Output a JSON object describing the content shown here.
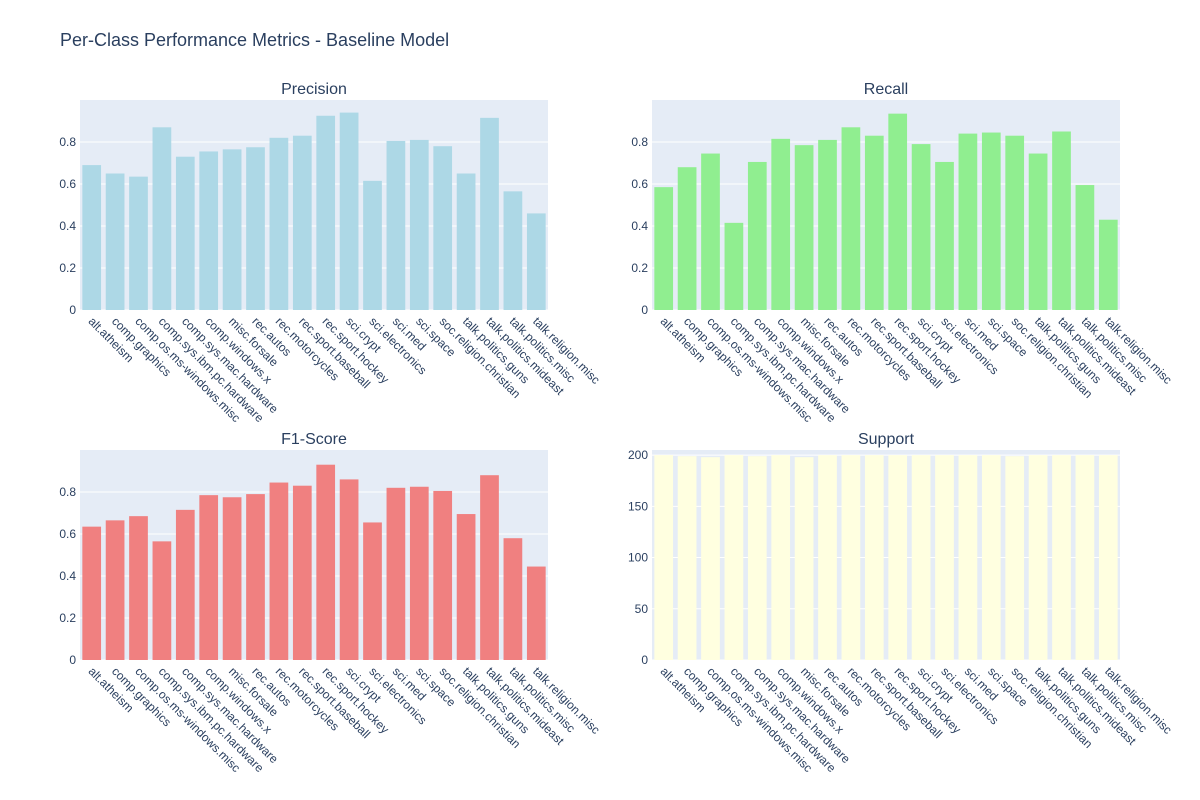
{
  "title": "Per-Class Performance Metrics - Baseline Model",
  "chart_data": [
    {
      "type": "bar",
      "title": "Precision",
      "color": "#add8e6",
      "categories": [
        "alt.atheism",
        "comp.graphics",
        "comp.os.ms-windows.misc",
        "comp.sys.ibm.pc.hardware",
        "comp.sys.mac.hardware",
        "comp.windows.x",
        "misc.forsale",
        "rec.autos",
        "rec.motorcycles",
        "rec.sport.baseball",
        "rec.sport.hockey",
        "sci.crypt",
        "sci.electronics",
        "sci.med",
        "sci.space",
        "soc.religion.christian",
        "talk.politics.guns",
        "talk.politics.mideast",
        "talk.politics.misc",
        "talk.religion.misc"
      ],
      "values": [
        0.69,
        0.65,
        0.635,
        0.87,
        0.73,
        0.755,
        0.765,
        0.775,
        0.82,
        0.83,
        0.925,
        0.94,
        0.615,
        0.805,
        0.81,
        0.78,
        0.65,
        0.915,
        0.565,
        0.46
      ],
      "ylim": [
        0,
        1.0
      ],
      "yticks": [
        0,
        0.2,
        0.4,
        0.6,
        0.8
      ],
      "ytick_labels": [
        "0",
        "0.2",
        "0.4",
        "0.6",
        "0.8"
      ]
    },
    {
      "type": "bar",
      "title": "Recall",
      "color": "#90ee90",
      "categories": [
        "alt.atheism",
        "comp.graphics",
        "comp.os.ms-windows.misc",
        "comp.sys.ibm.pc.hardware",
        "comp.sys.mac.hardware",
        "comp.windows.x",
        "misc.forsale",
        "rec.autos",
        "rec.motorcycles",
        "rec.sport.baseball",
        "rec.sport.hockey",
        "sci.crypt",
        "sci.electronics",
        "sci.med",
        "sci.space",
        "soc.religion.christian",
        "talk.politics.guns",
        "talk.politics.mideast",
        "talk.politics.misc",
        "talk.religion.misc"
      ],
      "values": [
        0.585,
        0.68,
        0.745,
        0.415,
        0.705,
        0.815,
        0.785,
        0.81,
        0.87,
        0.83,
        0.935,
        0.79,
        0.705,
        0.84,
        0.845,
        0.83,
        0.745,
        0.85,
        0.595,
        0.43
      ],
      "ylim": [
        0,
        1.0
      ],
      "yticks": [
        0,
        0.2,
        0.4,
        0.6,
        0.8
      ],
      "ytick_labels": [
        "0",
        "0.2",
        "0.4",
        "0.6",
        "0.8"
      ]
    },
    {
      "type": "bar",
      "title": "F1-Score",
      "color": "#f08080",
      "categories": [
        "alt.atheism",
        "comp.graphics",
        "comp.os.ms-windows.misc",
        "comp.sys.ibm.pc.hardware",
        "comp.sys.mac.hardware",
        "comp.windows.x",
        "misc.forsale",
        "rec.autos",
        "rec.motorcycles",
        "rec.sport.baseball",
        "rec.sport.hockey",
        "sci.crypt",
        "sci.electronics",
        "sci.med",
        "sci.space",
        "soc.religion.christian",
        "talk.politics.guns",
        "talk.politics.mideast",
        "talk.politics.misc",
        "talk.religion.misc"
      ],
      "values": [
        0.635,
        0.665,
        0.685,
        0.565,
        0.715,
        0.785,
        0.775,
        0.79,
        0.845,
        0.83,
        0.93,
        0.86,
        0.655,
        0.82,
        0.825,
        0.805,
        0.695,
        0.88,
        0.58,
        0.445
      ],
      "ylim": [
        0,
        1.0
      ],
      "yticks": [
        0,
        0.2,
        0.4,
        0.6,
        0.8
      ],
      "ytick_labels": [
        "0",
        "0.2",
        "0.4",
        "0.6",
        "0.8"
      ]
    },
    {
      "type": "bar",
      "title": "Support",
      "color": "#ffffe0",
      "categories": [
        "alt.atheism",
        "comp.graphics",
        "comp.os.ms-windows.misc",
        "comp.sys.ibm.pc.hardware",
        "comp.sys.mac.hardware",
        "comp.windows.x",
        "misc.forsale",
        "rec.autos",
        "rec.motorcycles",
        "rec.sport.baseball",
        "rec.sport.hockey",
        "sci.crypt",
        "sci.electronics",
        "sci.med",
        "sci.space",
        "soc.religion.christian",
        "talk.politics.guns",
        "talk.politics.mideast",
        "talk.politics.misc",
        "talk.religion.misc"
      ],
      "values": [
        200,
        199,
        198,
        200,
        199,
        200,
        198,
        200,
        200,
        200,
        200,
        200,
        200,
        200,
        200,
        199,
        200,
        200,
        200,
        200
      ],
      "ylim": [
        0,
        205
      ],
      "yticks": [
        0,
        50,
        100,
        150,
        200
      ],
      "ytick_labels": [
        "0",
        "50",
        "100",
        "150",
        "200"
      ]
    }
  ]
}
